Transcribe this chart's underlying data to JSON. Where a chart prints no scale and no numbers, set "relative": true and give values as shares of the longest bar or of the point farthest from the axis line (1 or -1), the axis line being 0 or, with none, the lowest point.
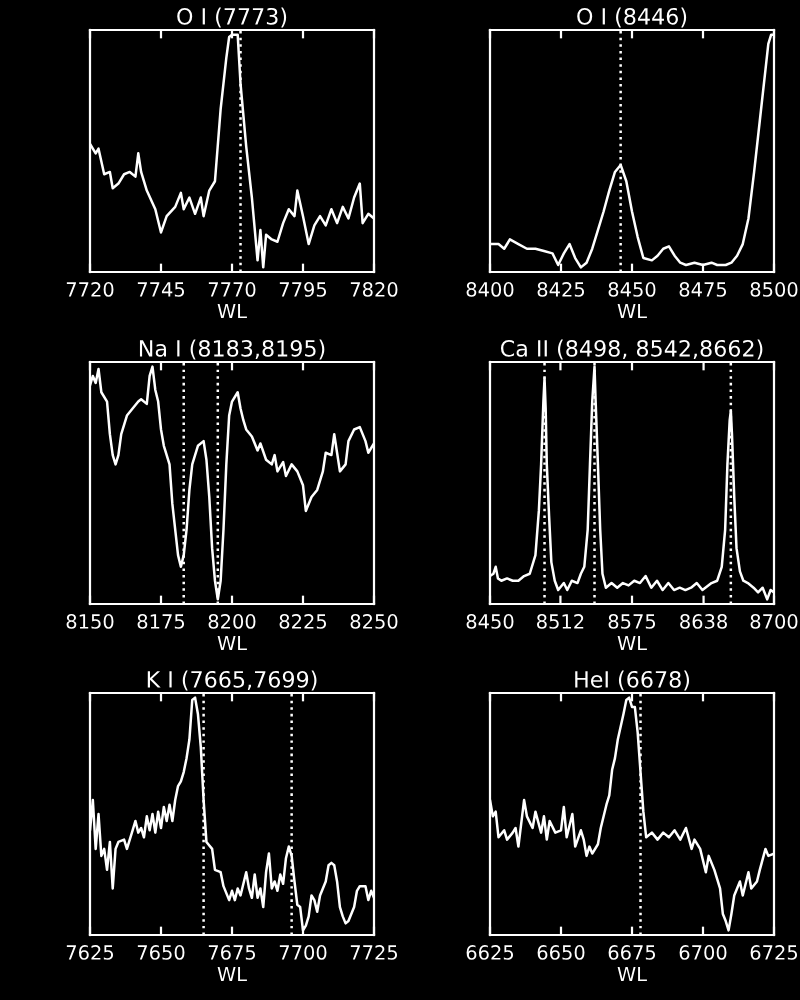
{
  "chart_data": [
    {
      "type": "line",
      "title": "O I (7773)",
      "xlabel": "WL",
      "relative": true,
      "color": "#ffffff",
      "xlim": [
        7720,
        7820
      ],
      "xticks": [
        7720,
        7745,
        7770,
        7795,
        7820
      ],
      "tick_labels": "x",
      "ref_lines": [
        {
          "axis": "x",
          "value": 7773,
          "line_style": "dotted",
          "color": "#ffffff"
        }
      ],
      "x": [
        7720,
        7722,
        7723,
        7725,
        7727,
        7728,
        7730,
        7732,
        7734,
        7736,
        7737,
        7738,
        7740,
        7743,
        7745,
        7747,
        7750,
        7752,
        7753,
        7755,
        7757,
        7759,
        7760,
        7762,
        7764,
        7766,
        7768,
        7769,
        7770,
        7772,
        7773,
        7775,
        7777,
        7779,
        7780,
        7781,
        7782,
        7784,
        7786,
        7788,
        7790,
        7792,
        7793,
        7795,
        7797,
        7799,
        7801,
        7803,
        7805,
        7807,
        7809,
        7811,
        7813,
        7815,
        7816,
        7818,
        7820
      ],
      "values": [
        0.53,
        0.49,
        0.51,
        0.4,
        0.41,
        0.34,
        0.36,
        0.4,
        0.41,
        0.39,
        0.49,
        0.41,
        0.33,
        0.25,
        0.15,
        0.22,
        0.26,
        0.32,
        0.25,
        0.3,
        0.23,
        0.3,
        0.22,
        0.33,
        0.37,
        0.68,
        0.9,
        0.99,
        1,
        1,
        0.79,
        0.52,
        0.3,
        0.03,
        0.16,
        0,
        0.14,
        0.12,
        0.11,
        0.19,
        0.25,
        0.22,
        0.33,
        0.22,
        0.1,
        0.18,
        0.22,
        0.18,
        0.25,
        0.19,
        0.26,
        0.21,
        0.3,
        0.36,
        0.19,
        0.23,
        0.21
      ]
    },
    {
      "type": "line",
      "title": "O I (8446)",
      "xlabel": "WL",
      "relative": true,
      "color": "#ffffff",
      "xlim": [
        8400,
        8500
      ],
      "xticks": [
        8400,
        8425,
        8450,
        8475,
        8500
      ],
      "tick_labels": "x",
      "ref_lines": [
        {
          "axis": "x",
          "value": 8446,
          "line_style": "dotted",
          "color": "#ffffff"
        }
      ],
      "x": [
        8400,
        8403,
        8405,
        8407,
        8410,
        8413,
        8416,
        8419,
        8422,
        8424,
        8426,
        8428,
        8430,
        8432,
        8434,
        8436,
        8438,
        8440,
        8442,
        8444,
        8446,
        8448,
        8450,
        8452,
        8454,
        8457,
        8459,
        8461,
        8463,
        8465,
        8467,
        8469,
        8472,
        8475,
        8478,
        8480,
        8483,
        8485,
        8487,
        8489,
        8491,
        8493,
        8495,
        8497,
        8498,
        8499,
        8500
      ],
      "values": [
        0.1,
        0.1,
        0.08,
        0.12,
        0.1,
        0.08,
        0.08,
        0.07,
        0.06,
        0.01,
        0.06,
        0.1,
        0.04,
        0,
        0.02,
        0.08,
        0.16,
        0.24,
        0.33,
        0.41,
        0.44,
        0.37,
        0.24,
        0.13,
        0.04,
        0.03,
        0.05,
        0.08,
        0.09,
        0.05,
        0.02,
        0.01,
        0.02,
        0.01,
        0.02,
        0.01,
        0.01,
        0.02,
        0.05,
        0.1,
        0.21,
        0.41,
        0.63,
        0.85,
        0.96,
        1,
        1
      ]
    },
    {
      "type": "line",
      "title": "Na I (8183,8195)",
      "xlabel": "WL",
      "relative": true,
      "color": "#ffffff",
      "xlim": [
        8150,
        8250
      ],
      "xticks": [
        8150,
        8175,
        8200,
        8225,
        8250
      ],
      "tick_labels": "x",
      "ref_lines": [
        {
          "axis": "x",
          "value": 8183,
          "line_style": "dotted",
          "color": "#ffffff"
        },
        {
          "axis": "x",
          "value": 8195,
          "line_style": "dotted",
          "color": "#ffffff"
        }
      ],
      "x": [
        8150,
        8151,
        8152,
        8153,
        8154,
        8156,
        8157,
        8158,
        8159,
        8160,
        8161,
        8163,
        8165,
        8167,
        8168,
        8170,
        8171,
        8172,
        8173,
        8174,
        8175,
        8176,
        8178,
        8179,
        8181,
        8182,
        8183,
        8184,
        8185,
        8186,
        8188,
        8190,
        8191,
        8192,
        8193,
        8194,
        8195,
        8196,
        8197,
        8198,
        8199,
        8200,
        8202,
        8203,
        8204,
        8205,
        8207,
        8209,
        8210,
        8212,
        8214,
        8215,
        8216,
        8218,
        8219,
        8221,
        8223,
        8225,
        8226,
        8228,
        8230,
        8232,
        8233,
        8235,
        8236,
        8237,
        8238,
        8240,
        8241,
        8243,
        8245,
        8247,
        8248,
        8250
      ],
      "values": [
        0.92,
        0.96,
        0.93,
        0.99,
        0.89,
        0.85,
        0.71,
        0.62,
        0.58,
        0.62,
        0.71,
        0.79,
        0.82,
        0.85,
        0.86,
        0.84,
        0.96,
        1,
        0.9,
        0.85,
        0.73,
        0.66,
        0.58,
        0.41,
        0.19,
        0.14,
        0.19,
        0.3,
        0.47,
        0.58,
        0.66,
        0.68,
        0.6,
        0.44,
        0.22,
        0.08,
        0,
        0.08,
        0.3,
        0.58,
        0.79,
        0.85,
        0.89,
        0.82,
        0.77,
        0.73,
        0.7,
        0.64,
        0.67,
        0.6,
        0.58,
        0.62,
        0.55,
        0.59,
        0.53,
        0.58,
        0.55,
        0.49,
        0.38,
        0.44,
        0.47,
        0.55,
        0.63,
        0.62,
        0.71,
        0.63,
        0.55,
        0.58,
        0.68,
        0.73,
        0.74,
        0.68,
        0.63,
        0.67
      ]
    },
    {
      "type": "line",
      "title": "Ca II (8498, 8542,8662)",
      "xlabel": "WL",
      "relative": true,
      "color": "#ffffff",
      "xlim": [
        8450,
        8700
      ],
      "xticks": [
        8450,
        8512,
        8575,
        8638,
        8700
      ],
      "tick_labels": "x",
      "ref_lines": [
        {
          "axis": "x",
          "value": 8498,
          "line_style": "dotted",
          "color": "#ffffff"
        },
        {
          "axis": "x",
          "value": 8542,
          "line_style": "dotted",
          "color": "#ffffff"
        },
        {
          "axis": "x",
          "value": 8662,
          "line_style": "dotted",
          "color": "#ffffff"
        }
      ],
      "x": [
        8450,
        8453,
        8455,
        8457,
        8460,
        8465,
        8470,
        8475,
        8480,
        8485,
        8490,
        8493,
        8495,
        8497,
        8498,
        8499,
        8500,
        8502,
        8504,
        8507,
        8510,
        8515,
        8518,
        8522,
        8527,
        8530,
        8533,
        8536,
        8538,
        8540,
        8542,
        8543,
        8545,
        8547,
        8549,
        8552,
        8557,
        8562,
        8567,
        8572,
        8577,
        8582,
        8587,
        8592,
        8597,
        8602,
        8607,
        8612,
        8617,
        8622,
        8627,
        8632,
        8637,
        8645,
        8650,
        8654,
        8657,
        8659,
        8661,
        8662,
        8663,
        8665,
        8667,
        8670,
        8673,
        8677,
        8682,
        8686,
        8690,
        8694,
        8697,
        8700
      ],
      "values": [
        0.1,
        0.11,
        0.14,
        0.09,
        0.08,
        0.09,
        0.08,
        0.08,
        0.1,
        0.11,
        0.19,
        0.38,
        0.58,
        0.85,
        0.95,
        0.82,
        0.58,
        0.36,
        0.16,
        0.08,
        0.04,
        0.07,
        0.04,
        0.08,
        0.07,
        0.11,
        0.14,
        0.3,
        0.58,
        0.85,
        1,
        0.85,
        0.58,
        0.3,
        0.11,
        0.05,
        0.07,
        0.05,
        0.07,
        0.06,
        0.08,
        0.07,
        0.1,
        0.05,
        0.08,
        0.04,
        0.07,
        0.04,
        0.05,
        0.04,
        0.05,
        0.07,
        0.04,
        0.07,
        0.08,
        0.14,
        0.3,
        0.58,
        0.77,
        0.81,
        0.71,
        0.44,
        0.22,
        0.12,
        0.08,
        0.07,
        0.05,
        0.03,
        0.05,
        0,
        0.04,
        0.03
      ]
    },
    {
      "type": "line",
      "title": "K I (7665,7699)",
      "xlabel": "WL",
      "relative": true,
      "color": "#ffffff",
      "xlim": [
        7625,
        7725
      ],
      "xticks": [
        7625,
        7650,
        7675,
        7700,
        7725
      ],
      "tick_labels": "x",
      "ref_lines": [
        {
          "axis": "x",
          "value": 7665,
          "line_style": "dotted",
          "color": "#ffffff"
        },
        {
          "axis": "x",
          "value": 7696,
          "line_style": "dotted",
          "color": "#ffffff"
        }
      ],
      "x": [
        7625,
        7626,
        7627,
        7628,
        7629,
        7630,
        7631,
        7632,
        7633,
        7634,
        7635,
        7637,
        7638,
        7640,
        7641,
        7642,
        7643,
        7644,
        7645,
        7646,
        7647,
        7648,
        7649,
        7650,
        7651,
        7652,
        7653,
        7654,
        7655,
        7656,
        7657,
        7658,
        7659,
        7660,
        7661,
        7662,
        7663,
        7664,
        7665,
        7666,
        7668,
        7669,
        7671,
        7672,
        7674,
        7675,
        7676,
        7677,
        7678,
        7680,
        7681,
        7682,
        7683,
        7684,
        7685,
        7686,
        7687,
        7688,
        7689,
        7690,
        7691,
        7692,
        7693,
        7694,
        7695,
        7696,
        7697,
        7698,
        7699,
        7700,
        7701,
        7702,
        7703,
        7704,
        7705,
        7706,
        7708,
        7709,
        7710,
        7711,
        7712,
        7713,
        7714,
        7715,
        7716,
        7718,
        7719,
        7720,
        7722,
        7723,
        7724,
        7725
      ],
      "values": [
        0.43,
        0.56,
        0.35,
        0.5,
        0.32,
        0.35,
        0.26,
        0.38,
        0.18,
        0.35,
        0.38,
        0.39,
        0.35,
        0.43,
        0.47,
        0.42,
        0.44,
        0.4,
        0.49,
        0.43,
        0.5,
        0.42,
        0.51,
        0.44,
        0.53,
        0.47,
        0.54,
        0.47,
        0.56,
        0.62,
        0.64,
        0.68,
        0.74,
        0.82,
        0.99,
        1,
        0.93,
        0.79,
        0.56,
        0.38,
        0.35,
        0.26,
        0.25,
        0.19,
        0.13,
        0.17,
        0.13,
        0.18,
        0.15,
        0.25,
        0.18,
        0.14,
        0.24,
        0.14,
        0.18,
        0.1,
        0.25,
        0.33,
        0.18,
        0.21,
        0.17,
        0.24,
        0.2,
        0.31,
        0.36,
        0.32,
        0.21,
        0.11,
        0.1,
        0,
        0.02,
        0.06,
        0.15,
        0.13,
        0.08,
        0.15,
        0.21,
        0.28,
        0.29,
        0.28,
        0.21,
        0.1,
        0.06,
        0.03,
        0.04,
        0.1,
        0.17,
        0.19,
        0.19,
        0.13,
        0.17,
        0.14
      ]
    },
    {
      "type": "line",
      "title": "HeI (6678)",
      "xlabel": "WL",
      "relative": true,
      "color": "#ffffff",
      "xlim": [
        6625,
        6725
      ],
      "xticks": [
        6625,
        6650,
        6675,
        6700,
        6725
      ],
      "tick_labels": "x",
      "ref_lines": [
        {
          "axis": "x",
          "value": 6678,
          "line_style": "dotted",
          "color": "#ffffff"
        }
      ],
      "x": [
        6625,
        6626,
        6627,
        6628,
        6630,
        6631,
        6633,
        6634,
        6635,
        6636,
        6637,
        6638,
        6640,
        6641,
        6643,
        6644,
        6645,
        6646,
        6648,
        6650,
        6651,
        6652,
        6654,
        6655,
        6657,
        6658,
        6659,
        6660,
        6661,
        6663,
        6664,
        6666,
        6667,
        6668,
        6669,
        6670,
        6672,
        6673,
        6674,
        6675,
        6676,
        6677,
        6679,
        6680,
        6682,
        6684,
        6686,
        6688,
        6690,
        6692,
        6694,
        6696,
        6697,
        6699,
        6701,
        6702,
        6704,
        6705,
        6706,
        6707,
        6708,
        6709,
        6710,
        6711,
        6713,
        6714,
        6716,
        6717,
        6719,
        6720,
        6722,
        6723,
        6725
      ],
      "values": [
        0.56,
        0.49,
        0.51,
        0.4,
        0.43,
        0.39,
        0.42,
        0.44,
        0.36,
        0.46,
        0.56,
        0.49,
        0.44,
        0.51,
        0.42,
        0.49,
        0.39,
        0.47,
        0.42,
        0.43,
        0.53,
        0.4,
        0.5,
        0.36,
        0.43,
        0.39,
        0.32,
        0.36,
        0.33,
        0.37,
        0.44,
        0.54,
        0.58,
        0.69,
        0.74,
        0.82,
        0.93,
        0.99,
        1,
        0.96,
        0.96,
        0.85,
        0.51,
        0.4,
        0.42,
        0.39,
        0.42,
        0.4,
        0.43,
        0.39,
        0.44,
        0.35,
        0.39,
        0.35,
        0.25,
        0.32,
        0.26,
        0.22,
        0.18,
        0.07,
        0.04,
        0,
        0.07,
        0.15,
        0.21,
        0.15,
        0.25,
        0.18,
        0.21,
        0.26,
        0.35,
        0.32,
        0.33
      ]
    }
  ]
}
